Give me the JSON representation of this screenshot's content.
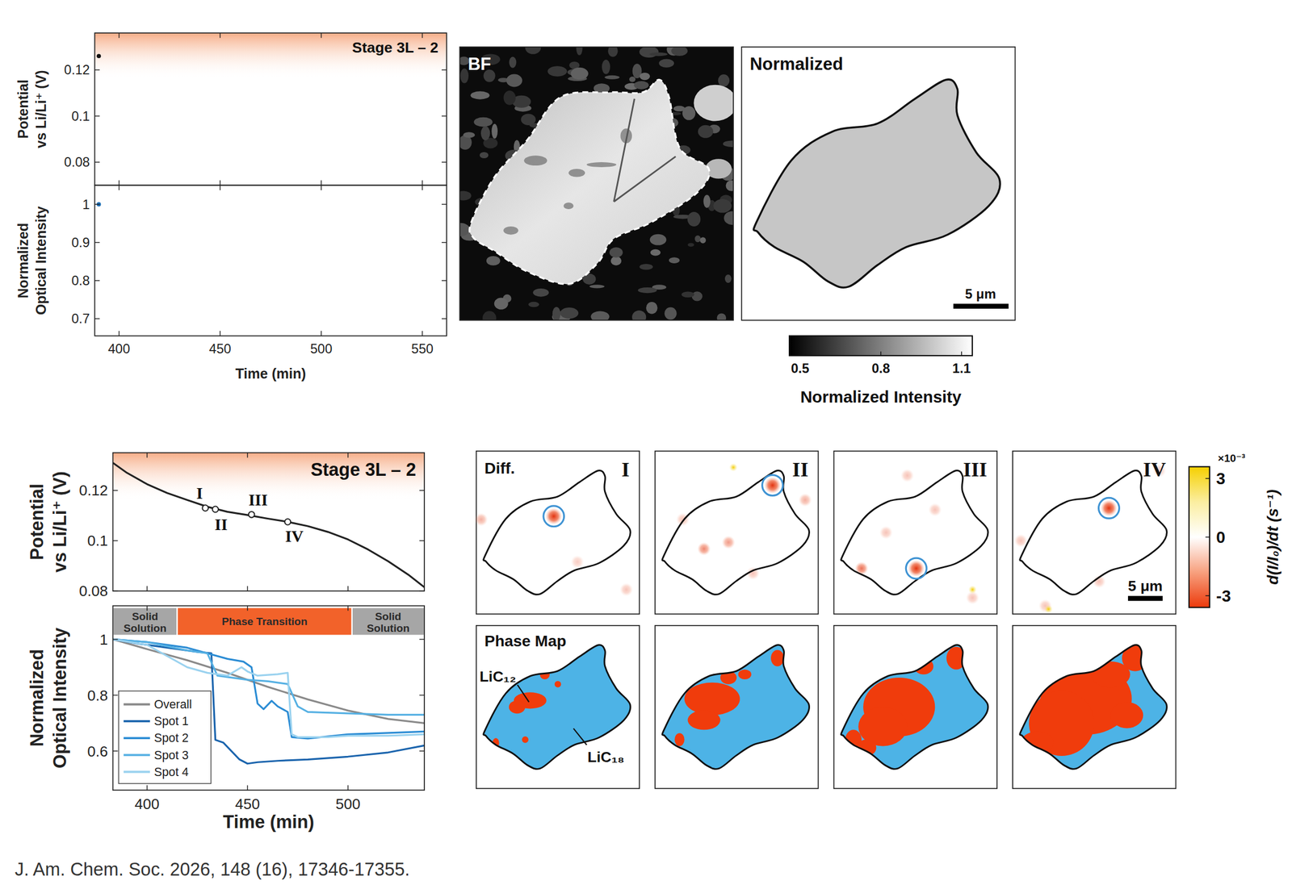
{
  "chart_data": [
    {
      "type": "scatter",
      "title": "Stage 3L – 2",
      "y_label": "Potential vs Li/Li⁺ (V)",
      "x": [
        390
      ],
      "values": [
        0.126
      ],
      "color": "#111111",
      "xlim": [
        388,
        562
      ],
      "ylim": [
        0.07,
        0.136
      ],
      "xticks": [
        400,
        450,
        500,
        550
      ],
      "yticks": [
        0.08,
        0.1,
        0.12
      ],
      "shaded_range": [
        0.116,
        0.136
      ],
      "tick_labels": "y",
      "grid": false
    },
    {
      "type": "scatter",
      "y_label": "Normalized Optical Intensity",
      "x_label": "Time (min)",
      "x": [
        390
      ],
      "values": [
        1.0
      ],
      "color": "#1f6fb5",
      "xlim": [
        388,
        562
      ],
      "ylim": [
        0.655,
        1.05
      ],
      "xticks": [
        400,
        450,
        500,
        550
      ],
      "yticks": [
        0.7,
        0.8,
        0.9,
        1
      ],
      "grid": false
    },
    {
      "type": "line",
      "title": "Stage 3L – 2",
      "y_label": "Potential vs Li/Li⁺ (V)",
      "x": [
        383,
        390,
        400,
        410,
        420,
        430,
        440,
        450,
        460,
        470,
        480,
        490,
        500,
        510,
        520,
        530,
        538
      ],
      "values": [
        0.131,
        0.127,
        0.1225,
        0.119,
        0.1162,
        0.1135,
        0.1115,
        0.1102,
        0.1088,
        0.1075,
        0.1058,
        0.1035,
        0.1005,
        0.0965,
        0.0918,
        0.0865,
        0.0815
      ],
      "color": "#222222",
      "xlim": [
        383,
        538
      ],
      "ylim": [
        0.08,
        0.135
      ],
      "xticks": [
        400,
        450,
        500
      ],
      "yticks": [
        0.08,
        0.1,
        0.12
      ],
      "shaded_range": [
        0.116,
        0.135
      ],
      "tick_labels": "y",
      "grid": false,
      "markers": [
        {
          "label": "I",
          "x": 429,
          "y": 0.113
        },
        {
          "label": "II",
          "x": 434,
          "y": 0.1125
        },
        {
          "label": "III",
          "x": 452,
          "y": 0.1104
        },
        {
          "label": "IV",
          "x": 470,
          "y": 0.1075
        }
      ]
    },
    {
      "type": "line",
      "y_label": "Normalized Optical Intensity",
      "x_label": "Time (min)",
      "xlim": [
        383,
        538
      ],
      "ylim": [
        0.46,
        1.12
      ],
      "xticks": [
        400,
        450,
        500
      ],
      "yticks": [
        0.6,
        0.8,
        1
      ],
      "grid": false,
      "legend": "lower left",
      "phase_regions": [
        {
          "label": "Solid Solution",
          "start": 383,
          "end": 415,
          "color": "#a6a6a6"
        },
        {
          "label": "Phase Transition",
          "start": 415,
          "end": 502,
          "color": "#f2622a"
        },
        {
          "label": "Solid Solution",
          "start": 502,
          "end": 538,
          "color": "#a6a6a6"
        }
      ],
      "series": [
        {
          "name": "Overall",
          "color": "#8a8a8a",
          "x": [
            383,
            400,
            420,
            440,
            460,
            480,
            500,
            520,
            538
          ],
          "values": [
            1.0,
            0.965,
            0.925,
            0.88,
            0.83,
            0.785,
            0.745,
            0.715,
            0.7
          ]
        },
        {
          "name": "Spot 1",
          "color": "#1a64ad",
          "x": [
            383,
            395,
            410,
            425,
            432,
            434,
            438,
            442,
            446,
            450,
            455,
            465,
            480,
            500,
            520,
            538
          ],
          "values": [
            1.0,
            0.985,
            0.97,
            0.955,
            0.95,
            0.64,
            0.63,
            0.6,
            0.57,
            0.555,
            0.56,
            0.565,
            0.57,
            0.58,
            0.595,
            0.62
          ]
        },
        {
          "name": "Spot 2",
          "color": "#2b8cd4",
          "x": [
            383,
            400,
            420,
            440,
            448,
            452,
            455,
            458,
            462,
            465,
            470,
            472,
            480,
            500,
            520,
            538
          ],
          "values": [
            1.0,
            0.99,
            0.97,
            0.93,
            0.92,
            0.9,
            0.77,
            0.75,
            0.78,
            0.76,
            0.74,
            0.65,
            0.645,
            0.66,
            0.665,
            0.67
          ]
        },
        {
          "name": "Spot 3",
          "color": "#55b0e3",
          "x": [
            383,
            400,
            420,
            430,
            435,
            440,
            450,
            460,
            470,
            475,
            480,
            500,
            520,
            538
          ],
          "values": [
            1.0,
            0.99,
            0.96,
            0.95,
            0.87,
            0.865,
            0.855,
            0.85,
            0.84,
            0.76,
            0.74,
            0.735,
            0.73,
            0.73
          ]
        },
        {
          "name": "Spot 4",
          "color": "#9ad2ef",
          "x": [
            383,
            400,
            410,
            420,
            430,
            440,
            447,
            450,
            455,
            465,
            470,
            472,
            475,
            490,
            500,
            520,
            538
          ],
          "values": [
            1.0,
            0.98,
            0.94,
            0.9,
            0.88,
            0.87,
            0.9,
            0.885,
            0.87,
            0.875,
            0.88,
            0.66,
            0.65,
            0.65,
            0.655,
            0.655,
            0.66
          ]
        }
      ]
    }
  ],
  "panels": {
    "bf": {
      "label": "BF"
    },
    "normalized": {
      "label": "Normalized",
      "scale_bar": "5 μm",
      "colorbar": {
        "label": "Normalized Intensity",
        "range": [
          0.46,
          1.14
        ],
        "ticks": [
          0.5,
          0.8,
          1.1
        ]
      }
    },
    "diff": {
      "label": "Diff.",
      "frames": [
        "I",
        "II",
        "III",
        "IV"
      ],
      "scale_bar": "5 μm",
      "colorbar": {
        "label": "d(I/I₀)/dt (s⁻¹)",
        "multiplier": "×10⁻³",
        "range": [
          -3.6,
          3.6
        ],
        "ticks": [
          3,
          0,
          -3
        ]
      }
    },
    "phase_map": {
      "label": "Phase Map",
      "phases": [
        {
          "name": "LiC₁₂",
          "color": "#f03c0c"
        },
        {
          "name": "LiC₁₈",
          "color": "#4db3e6"
        }
      ]
    }
  },
  "citation": "J. Am. Chem. Soc. 2026, 148 (16), 17346-17355."
}
